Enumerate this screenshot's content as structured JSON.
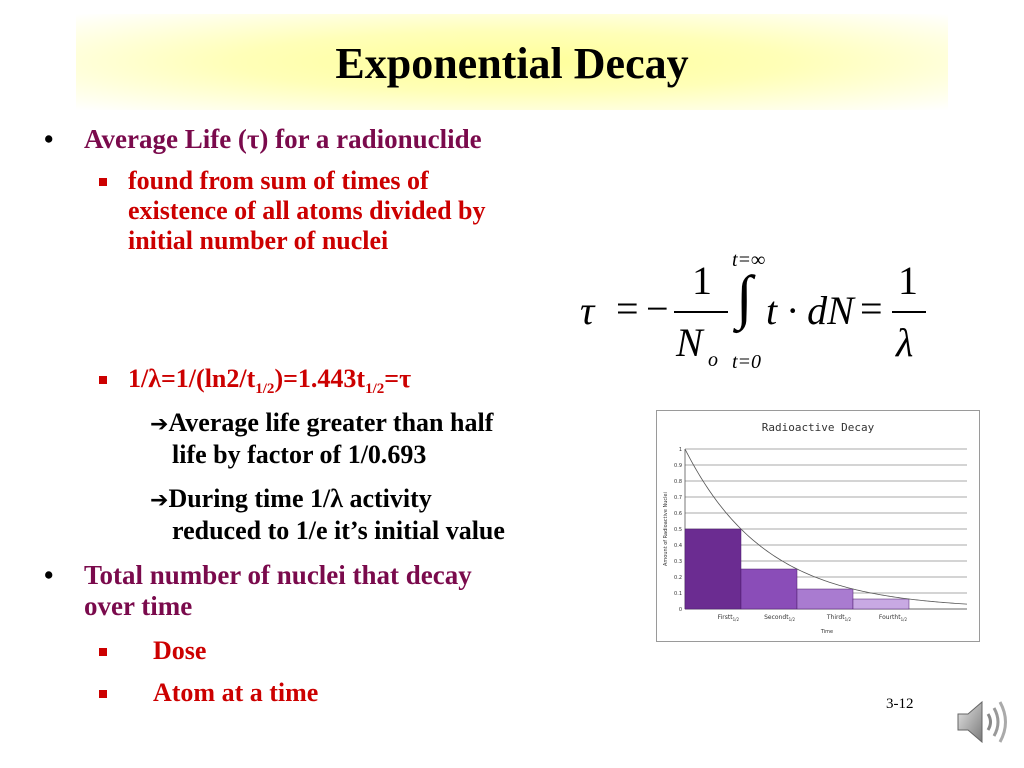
{
  "slide": {
    "title": "Exponential Decay",
    "bullets": {
      "avg_life": "Average Life (τ) for a radionuclide",
      "found_from": [
        "found from sum of times of",
        "existence of all atoms divided by",
        "initial number of nuclei"
      ],
      "relation": {
        "prefix": "1/λ=1/(ln2/t",
        "sub1": "1/2",
        "mid": ")=1.443t",
        "sub2": "1/2",
        "suffix": "=τ"
      },
      "arrow1": [
        "Average life greater than half",
        "life by factor of 1/0.693"
      ],
      "arrow2": [
        "During time 1/λ activity",
        "reduced to 1/e it’s initial value"
      ],
      "total": [
        "Total number of nuclei that decay",
        "over time"
      ],
      "dose": "Dose",
      "atom": "Atom at a time"
    },
    "formula": {
      "tau": "τ",
      "eq": "=",
      "minus": "−",
      "one": "1",
      "N": "N",
      "o": "o",
      "integral": "∫",
      "upper": "t=∞",
      "lower": "t=0",
      "integrand": "t · dN",
      "lambda": "λ"
    },
    "slide_number": "3-12",
    "icons": {
      "speaker": "speaker-icon"
    }
  },
  "chart_data": {
    "type": "bar",
    "title": "Radioactive Decay",
    "xlabel": "Time",
    "ylabel": "Amount of Radioactive Nuclei",
    "categories": [
      "First",
      "Second",
      "Third",
      "Fourth"
    ],
    "category_suffix": "t",
    "category_sub": "1/2",
    "values": [
      0.5,
      0.25,
      0.125,
      0.0625
    ],
    "ylim": [
      0,
      1
    ],
    "yticks": [
      "0",
      "0.1",
      "0.2",
      "0.3",
      "0.4",
      "0.5",
      "0.6",
      "0.7",
      "0.8",
      "0.9",
      "1"
    ],
    "curve": "exponential",
    "grid": true,
    "bar_colors": [
      "#6b2c91",
      "#8a4db8",
      "#a97bd0",
      "#c8a9e3"
    ]
  }
}
